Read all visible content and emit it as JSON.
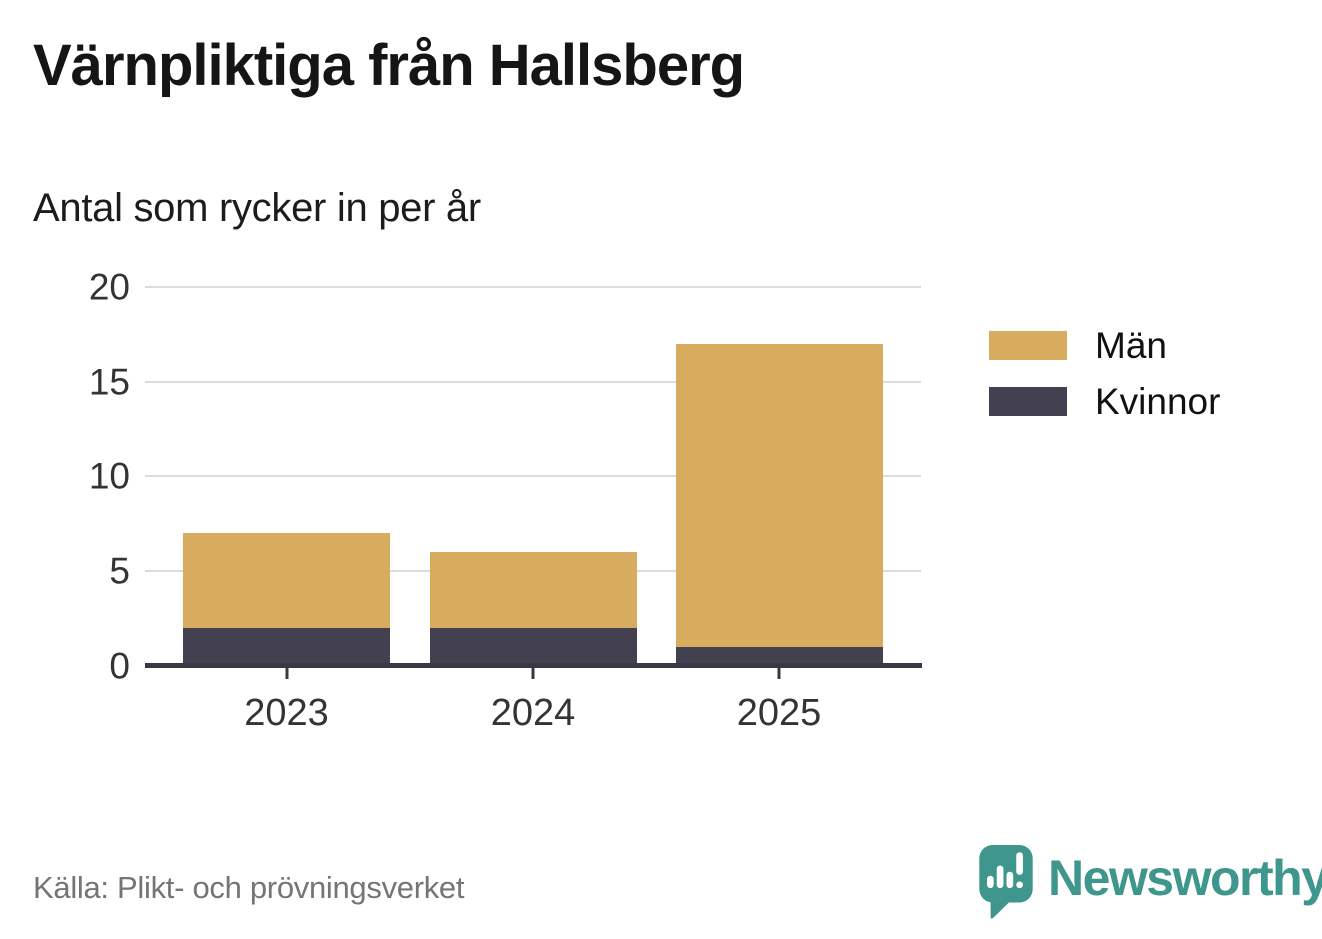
{
  "header": {
    "title": "Värnpliktiga från Hallsberg",
    "subtitle": "Antal som rycker in per år"
  },
  "chart_data": {
    "type": "bar",
    "stacked": true,
    "title": "Värnpliktiga från Hallsberg",
    "subtitle": "Antal som rycker in per år",
    "categories": [
      "2023",
      "2024",
      "2025"
    ],
    "series": [
      {
        "name": "Män",
        "color": "#D8AC5E",
        "values": [
          5,
          4,
          16
        ]
      },
      {
        "name": "Kvinnor",
        "color": "#434150",
        "values": [
          2,
          2,
          1
        ]
      }
    ],
    "stack_totals": [
      7,
      6,
      17
    ],
    "stack_order_bottom_up": [
      "Kvinnor",
      "Män"
    ],
    "ylim": [
      0,
      20
    ],
    "yticks": [
      0,
      5,
      10,
      15,
      20
    ],
    "xlabel": "",
    "ylabel": "",
    "grid": "horizontal",
    "legend_position": "right"
  },
  "footer": {
    "source": "Källa: Plikt- och prövningsverket",
    "brand": "Newsworthy"
  },
  "colors": {
    "men": "#D8AC5E",
    "women": "#434150",
    "grid": "#DCDCDC",
    "axis": "#3A3845",
    "text": "#343434",
    "muted_text": "#757575",
    "brand_teal": "#3E968D",
    "background": "#FFFFFF"
  }
}
